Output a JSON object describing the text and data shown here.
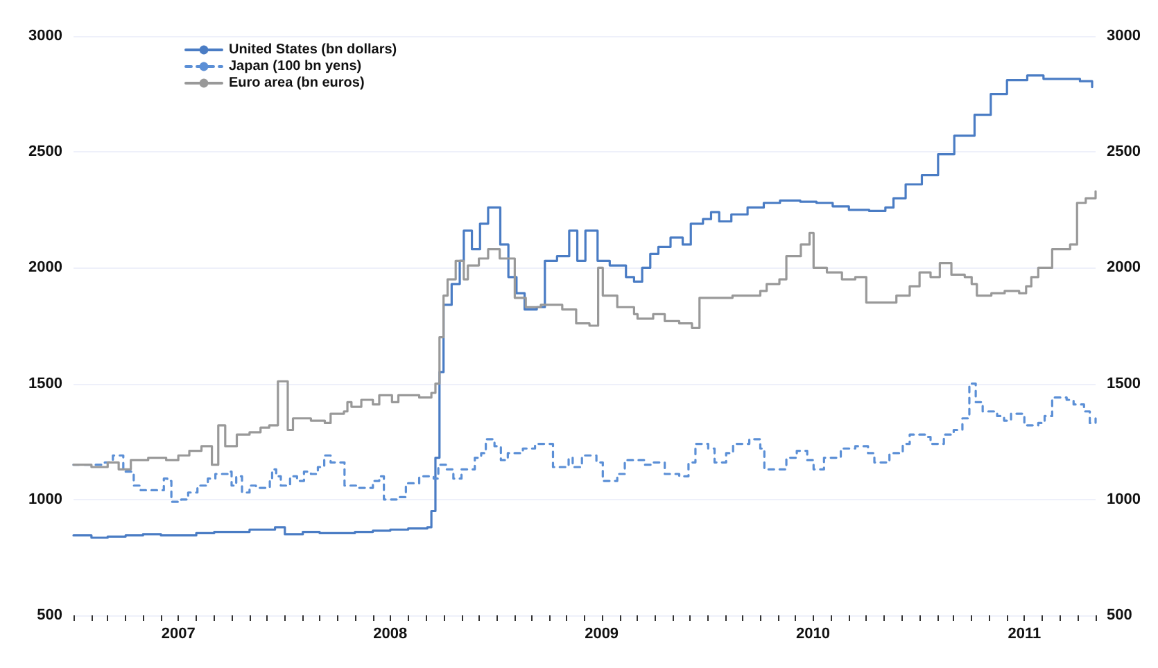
{
  "chart_data": {
    "type": "step",
    "legend": "top left",
    "grid": "y",
    "marker": "none",
    "xlim": [
      "2007-01-01",
      "2011-11-01"
    ],
    "xticks": [
      {
        "value": "2007-01-01",
        "label": null
      },
      {
        "value": "2007-02-01",
        "label": null
      },
      {
        "value": "2007-03-01",
        "label": null
      },
      {
        "value": "2007-04-01",
        "label": null
      },
      {
        "value": "2007-05-01",
        "label": null
      },
      {
        "value": "2007-06-01",
        "label": null
      },
      {
        "value": "2007-07-01",
        "label": "2007"
      },
      {
        "value": "2007-08-01",
        "label": null
      },
      {
        "value": "2007-09-01",
        "label": null
      },
      {
        "value": "2007-10-01",
        "label": null
      },
      {
        "value": "2007-11-01",
        "label": null
      },
      {
        "value": "2007-12-01",
        "label": null
      },
      {
        "value": "2008-01-01",
        "label": null
      },
      {
        "value": "2008-02-01",
        "label": null
      },
      {
        "value": "2008-03-01",
        "label": null
      },
      {
        "value": "2008-04-01",
        "label": null
      },
      {
        "value": "2008-05-01",
        "label": null
      },
      {
        "value": "2008-06-01",
        "label": null
      },
      {
        "value": "2008-07-01",
        "label": "2008"
      },
      {
        "value": "2008-08-01",
        "label": null
      },
      {
        "value": "2008-09-01",
        "label": null
      },
      {
        "value": "2008-10-01",
        "label": null
      },
      {
        "value": "2008-11-01",
        "label": null
      },
      {
        "value": "2008-12-01",
        "label": null
      },
      {
        "value": "2009-01-01",
        "label": null
      },
      {
        "value": "2009-02-01",
        "label": null
      },
      {
        "value": "2009-03-01",
        "label": null
      },
      {
        "value": "2009-04-01",
        "label": null
      },
      {
        "value": "2009-05-01",
        "label": null
      },
      {
        "value": "2009-06-01",
        "label": null
      },
      {
        "value": "2009-07-01",
        "label": "2009"
      },
      {
        "value": "2009-08-01",
        "label": null
      },
      {
        "value": "2009-09-01",
        "label": null
      },
      {
        "value": "2009-10-01",
        "label": null
      },
      {
        "value": "2009-11-01",
        "label": null
      },
      {
        "value": "2009-12-01",
        "label": null
      },
      {
        "value": "2010-01-01",
        "label": null
      },
      {
        "value": "2010-02-01",
        "label": null
      },
      {
        "value": "2010-03-01",
        "label": null
      },
      {
        "value": "2010-04-01",
        "label": null
      },
      {
        "value": "2010-05-01",
        "label": null
      },
      {
        "value": "2010-06-01",
        "label": null
      },
      {
        "value": "2010-07-01",
        "label": "2010"
      },
      {
        "value": "2010-08-01",
        "label": null
      },
      {
        "value": "2010-09-01",
        "label": null
      },
      {
        "value": "2010-10-01",
        "label": null
      },
      {
        "value": "2010-11-01",
        "label": null
      },
      {
        "value": "2010-12-01",
        "label": null
      },
      {
        "value": "2011-01-01",
        "label": null
      },
      {
        "value": "2011-02-01",
        "label": null
      },
      {
        "value": "2011-03-01",
        "label": null
      },
      {
        "value": "2011-04-01",
        "label": null
      },
      {
        "value": "2011-05-01",
        "label": null
      },
      {
        "value": "2011-06-01",
        "label": null
      },
      {
        "value": "2011-07-01",
        "label": "2011"
      },
      {
        "value": "2011-08-01",
        "label": null
      },
      {
        "value": "2011-09-01",
        "label": null
      },
      {
        "value": "2011-10-01",
        "label": null
      },
      {
        "value": "2011-11-01",
        "label": null
      }
    ],
    "ylim": [
      500,
      3000
    ],
    "yticks": [
      500,
      1000,
      1500,
      2000,
      2500,
      3000
    ],
    "y2lim": [
      500,
      3000
    ],
    "y2ticks": [
      500,
      1000,
      1500,
      2000,
      2500,
      3000
    ],
    "series": [
      {
        "name": "United States (bn dollars)",
        "color": "#4a7cc4",
        "line_style": "solid",
        "x": [
          "2007-01-01",
          "2007-02-01",
          "2007-03-01",
          "2007-04-01",
          "2007-05-01",
          "2007-06-01",
          "2007-07-01",
          "2007-08-01",
          "2007-09-01",
          "2007-10-01",
          "2007-11-01",
          "2007-12-15",
          "2008-01-01",
          "2008-02-01",
          "2008-03-01",
          "2008-04-01",
          "2008-05-01",
          "2008-06-01",
          "2008-07-01",
          "2008-08-01",
          "2008-09-03",
          "2008-09-10",
          "2008-09-17",
          "2008-09-24",
          "2008-10-01",
          "2008-10-15",
          "2008-10-29",
          "2008-11-05",
          "2008-11-19",
          "2008-12-03",
          "2008-12-17",
          "2009-01-07",
          "2009-01-21",
          "2009-02-04",
          "2009-02-18",
          "2009-03-11",
          "2009-03-25",
          "2009-04-15",
          "2009-05-06",
          "2009-05-20",
          "2009-06-03",
          "2009-06-24",
          "2009-07-15",
          "2009-08-12",
          "2009-08-26",
          "2009-09-09",
          "2009-09-23",
          "2009-10-07",
          "2009-10-28",
          "2009-11-18",
          "2009-12-02",
          "2009-12-23",
          "2010-01-06",
          "2010-01-20",
          "2010-02-10",
          "2010-03-10",
          "2010-04-07",
          "2010-05-05",
          "2010-06-09",
          "2010-07-07",
          "2010-08-04",
          "2010-09-01",
          "2010-10-06",
          "2010-11-03",
          "2010-11-17",
          "2010-12-08",
          "2011-01-05",
          "2011-02-02",
          "2011-03-02",
          "2011-04-06",
          "2011-05-04",
          "2011-06-01",
          "2011-07-06",
          "2011-08-03",
          "2011-09-07",
          "2011-10-05",
          "2011-10-26"
        ],
        "values": [
          845,
          835,
          840,
          845,
          850,
          845,
          845,
          855,
          860,
          860,
          870,
          880,
          850,
          860,
          855,
          855,
          860,
          865,
          870,
          875,
          880,
          950,
          1180,
          1550,
          1840,
          1930,
          2030,
          2160,
          2080,
          2190,
          2260,
          2100,
          1960,
          1890,
          1820,
          1830,
          2030,
          2050,
          2160,
          2030,
          2160,
          2030,
          2010,
          1960,
          1940,
          2000,
          2060,
          2090,
          2130,
          2100,
          2190,
          2210,
          2240,
          2200,
          2230,
          2260,
          2280,
          2290,
          2285,
          2280,
          2265,
          2250,
          2245,
          2260,
          2300,
          2360,
          2400,
          2490,
          2570,
          2660,
          2750,
          2810,
          2830,
          2815,
          2815,
          2805,
          2780
        ]
      },
      {
        "name": "Japan (100 bn yens)",
        "color": "#5b8fd6",
        "line_style": "dashed",
        "x": [
          "2007-01-01",
          "2007-02-24",
          "2007-03-10",
          "2007-03-28",
          "2007-04-15",
          "2007-04-27",
          "2007-06-01",
          "2007-06-06",
          "2007-06-12",
          "2007-06-19",
          "2007-07-06",
          "2007-07-18",
          "2007-08-03",
          "2007-08-21",
          "2007-09-03",
          "2007-09-27",
          "2007-10-01",
          "2007-10-09",
          "2007-10-19",
          "2007-11-01",
          "2007-11-12",
          "2007-12-06",
          "2007-12-10",
          "2007-12-17",
          "2007-12-25",
          "2008-01-10",
          "2008-01-22",
          "2008-02-03",
          "2008-02-15",
          "2008-02-27",
          "2008-03-09",
          "2008-03-20",
          "2008-04-13",
          "2008-05-06",
          "2008-06-01",
          "2008-06-12",
          "2008-06-20",
          "2008-07-16",
          "2008-07-28",
          "2008-08-20",
          "2008-09-14",
          "2008-09-22",
          "2008-10-06",
          "2008-10-18",
          "2008-11-01",
          "2008-11-24",
          "2008-12-05",
          "2008-12-13",
          "2008-12-28",
          "2009-01-08",
          "2009-01-20",
          "2009-02-15",
          "2009-03-08",
          "2009-04-01",
          "2009-04-08",
          "2009-04-24",
          "2009-05-05",
          "2009-05-12",
          "2009-05-28",
          "2009-06-22",
          "2009-07-03",
          "2009-07-28",
          "2009-08-10",
          "2009-09-13",
          "2009-09-29",
          "2009-10-18",
          "2009-11-12",
          "2009-11-28",
          "2009-12-10",
          "2010-01-01",
          "2010-01-12",
          "2010-02-01",
          "2010-02-13",
          "2010-03-13",
          "2010-04-01",
          "2010-04-08",
          "2010-05-04",
          "2010-05-16",
          "2010-06-03",
          "2010-06-21",
          "2010-07-02",
          "2010-07-20",
          "2010-08-18",
          "2010-09-12",
          "2010-10-04",
          "2010-10-15",
          "2010-11-10",
          "2010-12-03",
          "2010-12-15",
          "2011-01-12",
          "2011-01-20",
          "2011-02-12",
          "2011-03-01",
          "2011-03-16",
          "2011-03-28",
          "2011-04-08",
          "2011-04-20",
          "2011-05-15",
          "2011-05-27",
          "2011-06-08",
          "2011-07-01",
          "2011-07-25",
          "2011-08-05",
          "2011-08-18",
          "2011-09-12",
          "2011-09-24",
          "2011-10-12",
          "2011-10-22",
          "2011-11-01"
        ],
        "values": [
          1150,
          1160,
          1190,
          1120,
          1060,
          1040,
          1040,
          1090,
          1080,
          990,
          1000,
          1030,
          1060,
          1090,
          1110,
          1120,
          1060,
          1100,
          1030,
          1060,
          1050,
          1080,
          1130,
          1100,
          1060,
          1100,
          1080,
          1120,
          1110,
          1140,
          1190,
          1160,
          1060,
          1050,
          1080,
          1100,
          1000,
          1010,
          1070,
          1100,
          1090,
          1150,
          1130,
          1090,
          1130,
          1180,
          1200,
          1260,
          1230,
          1170,
          1200,
          1220,
          1240,
          1240,
          1140,
          1140,
          1180,
          1140,
          1190,
          1160,
          1080,
          1110,
          1170,
          1150,
          1160,
          1110,
          1100,
          1160,
          1240,
          1220,
          1160,
          1200,
          1240,
          1260,
          1220,
          1130,
          1130,
          1180,
          1210,
          1170,
          1130,
          1180,
          1220,
          1230,
          1200,
          1160,
          1200,
          1240,
          1280,
          1270,
          1240,
          1280,
          1300,
          1350,
          1500,
          1420,
          1380,
          1360,
          1340,
          1370,
          1320,
          1330,
          1360,
          1440,
          1430,
          1410,
          1380,
          1330,
          1350
        ]
      },
      {
        "name": "Euro area (bn euros)",
        "color": "#999999",
        "line_style": "solid",
        "x": [
          "2007-01-01",
          "2007-02-01",
          "2007-03-01",
          "2007-03-20",
          "2007-04-10",
          "2007-05-10",
          "2007-06-10",
          "2007-07-01",
          "2007-07-20",
          "2007-08-10",
          "2007-08-28",
          "2007-09-08",
          "2007-09-20",
          "2007-10-10",
          "2007-11-01",
          "2007-11-20",
          "2007-12-05",
          "2007-12-20",
          "2008-01-06",
          "2008-01-15",
          "2008-02-15",
          "2008-03-10",
          "2008-03-20",
          "2008-04-12",
          "2008-04-18",
          "2008-04-25",
          "2008-05-12",
          "2008-06-01",
          "2008-06-12",
          "2008-07-04",
          "2008-07-15",
          "2008-08-20",
          "2008-09-10",
          "2008-09-17",
          "2008-09-24",
          "2008-10-01",
          "2008-10-08",
          "2008-10-22",
          "2008-11-05",
          "2008-11-12",
          "2008-12-01",
          "2008-12-17",
          "2009-01-06",
          "2009-02-01",
          "2009-02-20",
          "2009-03-18",
          "2009-04-24",
          "2009-05-18",
          "2009-06-10",
          "2009-06-25",
          "2009-07-03",
          "2009-07-28",
          "2009-08-26",
          "2009-09-01",
          "2009-09-28",
          "2009-10-18",
          "2009-11-12",
          "2009-12-04",
          "2009-12-17",
          "2010-02-12",
          "2010-04-01",
          "2010-04-12",
          "2010-05-04",
          "2010-05-16",
          "2010-06-10",
          "2010-06-25",
          "2010-07-02",
          "2010-07-25",
          "2010-08-20",
          "2010-09-12",
          "2010-10-01",
          "2010-10-28",
          "2010-11-22",
          "2010-12-15",
          "2011-01-01",
          "2011-01-20",
          "2011-02-05",
          "2011-02-25",
          "2011-03-20",
          "2011-04-01",
          "2011-04-10",
          "2011-05-05",
          "2011-05-28",
          "2011-06-22",
          "2011-07-04",
          "2011-07-13",
          "2011-07-25",
          "2011-08-18",
          "2011-09-18",
          "2011-09-30",
          "2011-10-15",
          "2011-11-01"
        ],
        "values": [
          1150,
          1140,
          1160,
          1130,
          1170,
          1180,
          1170,
          1190,
          1210,
          1230,
          1150,
          1320,
          1230,
          1280,
          1290,
          1310,
          1320,
          1510,
          1300,
          1350,
          1340,
          1330,
          1370,
          1380,
          1420,
          1400,
          1430,
          1410,
          1450,
          1420,
          1450,
          1440,
          1460,
          1500,
          1700,
          1880,
          1950,
          2030,
          1950,
          2010,
          2040,
          2080,
          2040,
          1870,
          1830,
          1840,
          1820,
          1760,
          1750,
          2000,
          1880,
          1830,
          1800,
          1780,
          1800,
          1770,
          1760,
          1740,
          1870,
          1880,
          1900,
          1930,
          1950,
          2050,
          2100,
          2150,
          2000,
          1980,
          1950,
          1960,
          1850,
          1850,
          1880,
          1920,
          1980,
          1960,
          2020,
          1970,
          1960,
          1930,
          1880,
          1890,
          1900,
          1890,
          1920,
          1960,
          2000,
          2080,
          2100,
          2280,
          2300,
          2330
        ]
      }
    ]
  }
}
